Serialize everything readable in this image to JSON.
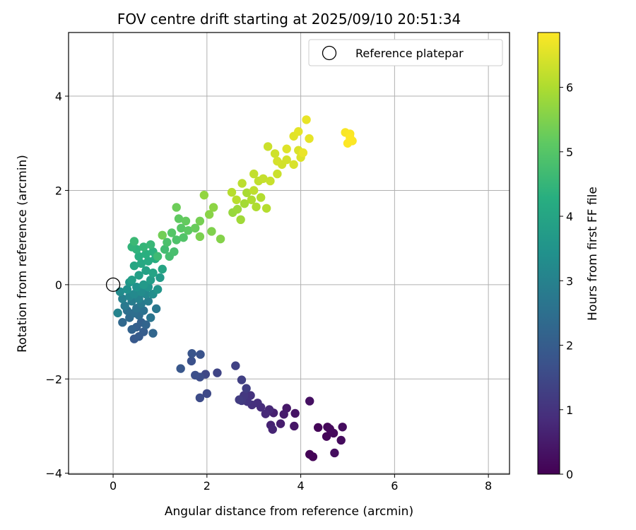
{
  "chart_data": {
    "type": "scatter",
    "title": "FOV centre drift starting at 2025/09/10 20:51:34",
    "xlabel": "Angular distance from reference (arcmin)",
    "ylabel": "Rotation from reference (arcmin)",
    "xlim": [
      -0.95,
      8.45
    ],
    "ylim": [
      -4.02,
      5.35
    ],
    "xticks": [
      0,
      2,
      4,
      6,
      8
    ],
    "xtick_labels": [
      "0",
      "2",
      "4",
      "6",
      "8"
    ],
    "yticks": [
      -4,
      -2,
      0,
      2,
      4
    ],
    "ytick_labels": [
      "−4",
      "−2",
      "0",
      "2",
      "4"
    ],
    "grid": true,
    "legend": {
      "position": "top-right",
      "entries": [
        {
          "label": "Reference platepar",
          "marker": "open-circle"
        }
      ]
    },
    "reference_point": {
      "x": 0,
      "y": 0
    },
    "colorbar": {
      "label": "Hours from first FF file",
      "range": [
        0,
        6.85
      ],
      "ticks": [
        0,
        1,
        2,
        3,
        4,
        5,
        6
      ],
      "tick_labels": [
        "0",
        "1",
        "2",
        "3",
        "4",
        "5",
        "6"
      ],
      "colormap": "viridis"
    },
    "points": [
      [
        4.19,
        -3.6,
        0.05
      ],
      [
        4.26,
        -3.65,
        0.06
      ],
      [
        4.37,
        -3.03,
        0.08
      ],
      [
        4.57,
        -3.02,
        0.1
      ],
      [
        4.55,
        -3.22,
        0.12
      ],
      [
        4.62,
        -3.06,
        0.15
      ],
      [
        4.7,
        -3.15,
        0.17
      ],
      [
        4.86,
        -3.3,
        0.2
      ],
      [
        4.89,
        -3.02,
        0.22
      ],
      [
        4.72,
        -3.57,
        0.25
      ],
      [
        4.19,
        -2.47,
        0.3
      ],
      [
        3.88,
        -2.73,
        0.35
      ],
      [
        3.86,
        -3.0,
        0.4
      ],
      [
        3.7,
        -2.62,
        0.45
      ],
      [
        3.64,
        -2.75,
        0.5
      ],
      [
        3.57,
        -2.95,
        0.55
      ],
      [
        3.42,
        -2.72,
        0.6
      ],
      [
        3.36,
        -2.98,
        0.65
      ],
      [
        3.4,
        -3.07,
        0.7
      ],
      [
        3.33,
        -2.65,
        0.75
      ],
      [
        3.25,
        -2.74,
        0.8
      ],
      [
        3.15,
        -2.6,
        0.85
      ],
      [
        3.08,
        -2.51,
        0.9
      ],
      [
        2.96,
        -2.55,
        0.95
      ],
      [
        2.93,
        -2.35,
        1.0
      ],
      [
        2.86,
        -2.48,
        1.05
      ],
      [
        2.79,
        -2.35,
        1.1
      ],
      [
        2.74,
        -2.46,
        1.15
      ],
      [
        2.69,
        -2.44,
        1.2
      ],
      [
        2.84,
        -2.2,
        1.25
      ],
      [
        2.74,
        -2.02,
        1.3
      ],
      [
        2.61,
        -1.72,
        1.35
      ],
      [
        2.22,
        -1.87,
        1.4
      ],
      [
        1.97,
        -1.9,
        1.45
      ],
      [
        2.0,
        -2.31,
        1.5
      ],
      [
        1.85,
        -2.4,
        1.55
      ],
      [
        1.85,
        -1.96,
        1.6
      ],
      [
        1.75,
        -1.92,
        1.65
      ],
      [
        1.67,
        -1.62,
        1.7
      ],
      [
        1.86,
        -1.48,
        1.75
      ],
      [
        1.68,
        -1.46,
        1.8
      ],
      [
        1.44,
        -1.78,
        1.85
      ],
      [
        0.45,
        -1.15,
        1.9
      ],
      [
        0.55,
        -1.1,
        1.95
      ],
      [
        0.65,
        -1.0,
        2.0
      ],
      [
        0.5,
        -0.9,
        2.05
      ],
      [
        0.6,
        -0.8,
        2.1
      ],
      [
        0.4,
        -0.95,
        2.15
      ],
      [
        0.7,
        -0.85,
        2.2
      ],
      [
        0.85,
        -1.03,
        2.25
      ],
      [
        0.2,
        -0.8,
        2.3
      ],
      [
        0.35,
        -0.7,
        2.35
      ],
      [
        0.55,
        -0.65,
        2.4
      ],
      [
        0.45,
        -0.6,
        2.45
      ],
      [
        0.3,
        -0.55,
        2.5
      ],
      [
        0.65,
        -0.55,
        2.55
      ],
      [
        0.5,
        -0.5,
        2.6
      ],
      [
        0.8,
        -0.7,
        2.65
      ],
      [
        0.92,
        -0.51,
        2.7
      ],
      [
        0.25,
        -0.45,
        2.75
      ],
      [
        0.6,
        -0.4,
        2.8
      ],
      [
        0.4,
        -0.35,
        2.85
      ],
      [
        0.75,
        -0.35,
        2.9
      ],
      [
        0.2,
        -0.3,
        2.95
      ],
      [
        0.55,
        -0.3,
        3.0
      ],
      [
        0.1,
        -0.6,
        3.05
      ],
      [
        0.35,
        -0.25,
        3.1
      ],
      [
        0.7,
        -0.2,
        3.15
      ],
      [
        0.45,
        -0.2,
        3.2
      ],
      [
        0.15,
        -0.15,
        3.25
      ],
      [
        0.6,
        -0.15,
        3.3
      ],
      [
        0.85,
        -0.2,
        3.35
      ],
      [
        0.3,
        -0.1,
        3.4
      ],
      [
        0.5,
        -0.05,
        3.45
      ],
      [
        0.75,
        -0.05,
        3.5
      ],
      [
        0.95,
        -0.1,
        3.55
      ],
      [
        0.35,
        0.05,
        3.6
      ],
      [
        0.65,
        0.0,
        3.65
      ],
      [
        1.0,
        0.15,
        3.7
      ],
      [
        0.8,
        0.1,
        3.75
      ],
      [
        0.4,
        0.1,
        3.8
      ],
      [
        0.55,
        0.2,
        3.85
      ],
      [
        0.7,
        0.3,
        3.9
      ],
      [
        0.85,
        0.25,
        3.95
      ],
      [
        1.05,
        0.33,
        4.0
      ],
      [
        0.45,
        0.4,
        4.05
      ],
      [
        0.6,
        0.45,
        4.1
      ],
      [
        0.75,
        0.5,
        4.15
      ],
      [
        0.9,
        0.55,
        4.2
      ],
      [
        0.55,
        0.6,
        4.25
      ],
      [
        0.7,
        0.65,
        4.3
      ],
      [
        0.85,
        0.7,
        4.35
      ],
      [
        0.5,
        0.75,
        4.4
      ],
      [
        0.4,
        0.8,
        4.45
      ],
      [
        0.65,
        0.8,
        4.5
      ],
      [
        0.8,
        0.85,
        4.55
      ],
      [
        0.45,
        0.92,
        4.6
      ],
      [
        0.95,
        0.6,
        4.65
      ],
      [
        1.1,
        0.75,
        4.7
      ],
      [
        1.2,
        0.6,
        4.75
      ],
      [
        1.3,
        0.7,
        4.8
      ],
      [
        1.15,
        0.9,
        4.85
      ],
      [
        1.35,
        0.95,
        4.9
      ],
      [
        1.5,
        1.0,
        4.95
      ],
      [
        1.25,
        1.1,
        5.0
      ],
      [
        1.45,
        1.2,
        5.05
      ],
      [
        1.6,
        1.15,
        5.1
      ],
      [
        1.4,
        1.4,
        5.15
      ],
      [
        1.55,
        1.35,
        5.2
      ],
      [
        1.75,
        1.2,
        5.25
      ],
      [
        1.35,
        1.64,
        5.3
      ],
      [
        1.05,
        1.05,
        5.35
      ],
      [
        1.85,
        1.35,
        5.4
      ],
      [
        1.85,
        1.02,
        5.45
      ],
      [
        2.1,
        1.13,
        5.5
      ],
      [
        2.29,
        0.97,
        5.55
      ],
      [
        2.05,
        1.49,
        5.6
      ],
      [
        2.14,
        1.64,
        5.65
      ],
      [
        1.94,
        1.9,
        5.7
      ],
      [
        2.55,
        1.53,
        5.75
      ],
      [
        2.65,
        1.6,
        5.8
      ],
      [
        2.72,
        1.38,
        5.85
      ],
      [
        2.8,
        1.72,
        5.9
      ],
      [
        2.85,
        1.95,
        5.95
      ],
      [
        2.95,
        1.8,
        6.0
      ],
      [
        3.05,
        1.65,
        6.02
      ],
      [
        3.15,
        1.85,
        6.05
      ],
      [
        3.27,
        1.62,
        6.08
      ],
      [
        2.53,
        1.96,
        6.1
      ],
      [
        2.63,
        1.8,
        6.12
      ],
      [
        2.75,
        2.15,
        6.15
      ],
      [
        3.0,
        2.0,
        6.18
      ],
      [
        3.1,
        2.2,
        6.2
      ],
      [
        3.0,
        2.35,
        6.22
      ],
      [
        3.2,
        2.25,
        6.25
      ],
      [
        3.35,
        2.2,
        6.28
      ],
      [
        3.5,
        2.35,
        6.3
      ],
      [
        3.3,
        2.93,
        6.32
      ],
      [
        3.45,
        2.78,
        6.35
      ],
      [
        3.6,
        2.55,
        6.38
      ],
      [
        3.7,
        2.65,
        6.4
      ],
      [
        3.5,
        2.62,
        6.42
      ],
      [
        3.85,
        2.55,
        6.45
      ],
      [
        3.95,
        2.85,
        6.48
      ],
      [
        4.0,
        2.7,
        6.5
      ],
      [
        3.7,
        2.88,
        6.52
      ],
      [
        3.85,
        3.15,
        6.55
      ],
      [
        3.95,
        3.25,
        6.58
      ],
      [
        4.18,
        3.1,
        6.6
      ],
      [
        4.12,
        3.5,
        6.62
      ],
      [
        4.05,
        2.8,
        6.65
      ],
      [
        4.95,
        3.23,
        6.8
      ],
      [
        5.05,
        3.2,
        6.82
      ],
      [
        5.1,
        3.05,
        6.83
      ],
      [
        5.0,
        3.0,
        6.84
      ],
      [
        5.05,
        3.12,
        6.85
      ]
    ]
  }
}
